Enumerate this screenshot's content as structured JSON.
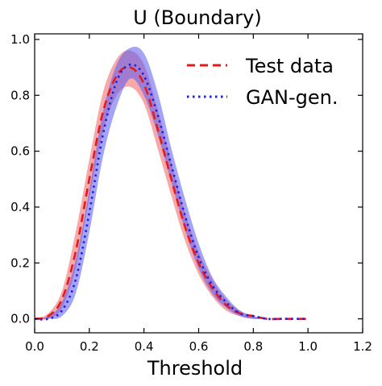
{
  "chart_data": {
    "type": "line",
    "title": "U (Boundary)",
    "xlabel": "Threshold",
    "ylabel": "",
    "xlim": [
      0.0,
      1.2
    ],
    "ylim": [
      -0.05,
      1.02
    ],
    "x_ticks": [
      "0.0",
      "0.2",
      "0.4",
      "0.6",
      "0.8",
      "1.0",
      "1.2"
    ],
    "y_ticks": [
      "0.0",
      "0.2",
      "0.4",
      "0.6",
      "0.8",
      "1.0"
    ],
    "grid": false,
    "legend_position": "top-right",
    "x": [
      0.0,
      0.05,
      0.1,
      0.15,
      0.2,
      0.25,
      0.3,
      0.35,
      0.4,
      0.45,
      0.5,
      0.55,
      0.6,
      0.65,
      0.7,
      0.75,
      0.8,
      0.85,
      0.9,
      0.95,
      1.0
    ],
    "series": [
      {
        "name": "Test data",
        "color": "#e41a1c",
        "band_color": "#f06060",
        "line_style": "dashed",
        "values": [
          0.0,
          0.01,
          0.07,
          0.24,
          0.5,
          0.74,
          0.87,
          0.9,
          0.84,
          0.68,
          0.5,
          0.33,
          0.2,
          0.11,
          0.05,
          0.02,
          0.01,
          0.0,
          0.0,
          0.0,
          0.0
        ],
        "lower": [
          0.0,
          0.0,
          0.04,
          0.18,
          0.43,
          0.67,
          0.8,
          0.83,
          0.77,
          0.61,
          0.44,
          0.28,
          0.16,
          0.08,
          0.03,
          0.01,
          0.0,
          0.0,
          0.0,
          0.0,
          0.0
        ],
        "upper": [
          0.0,
          0.02,
          0.1,
          0.31,
          0.57,
          0.81,
          0.93,
          0.96,
          0.91,
          0.75,
          0.56,
          0.38,
          0.24,
          0.14,
          0.07,
          0.03,
          0.01,
          0.0,
          0.0,
          0.0,
          0.0
        ]
      },
      {
        "name": "GAN-gen.",
        "color": "#1f1fe0",
        "band_color": "#5a5af2",
        "line_style": "dotted",
        "values": [
          0.0,
          0.0,
          0.03,
          0.14,
          0.38,
          0.66,
          0.85,
          0.91,
          0.87,
          0.73,
          0.55,
          0.37,
          0.22,
          0.12,
          0.06,
          0.02,
          0.01,
          0.0,
          0.0,
          0.0,
          0.0
        ],
        "lower": [
          0.0,
          0.0,
          0.01,
          0.09,
          0.31,
          0.58,
          0.76,
          0.86,
          0.8,
          0.66,
          0.49,
          0.32,
          0.18,
          0.09,
          0.04,
          0.01,
          0.0,
          0.0,
          0.0,
          0.0,
          0.0
        ],
        "upper": [
          0.0,
          0.01,
          0.06,
          0.21,
          0.46,
          0.74,
          0.91,
          0.97,
          0.95,
          0.81,
          0.61,
          0.43,
          0.27,
          0.15,
          0.08,
          0.03,
          0.01,
          0.0,
          0.0,
          0.0,
          0.0
        ]
      }
    ]
  }
}
